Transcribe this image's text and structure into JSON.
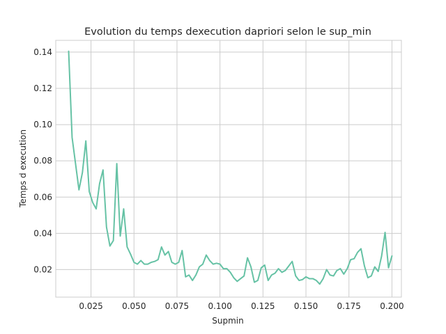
{
  "chart_data": {
    "type": "line",
    "title": "Evolution du temps dexecution dapriori selon le sup_min",
    "xlabel": "Supmin",
    "ylabel": "Temps d execution",
    "xlim": [
      0.0045,
      0.2055
    ],
    "ylim": [
      0.0048,
      0.1465
    ],
    "grid": true,
    "line_color": "#66c2a5",
    "x_ticks": [
      {
        "value": 0.025,
        "label": "0.025"
      },
      {
        "value": 0.05,
        "label": "0.050"
      },
      {
        "value": 0.075,
        "label": "0.075"
      },
      {
        "value": 0.1,
        "label": "0.100"
      },
      {
        "value": 0.125,
        "label": "0.125"
      },
      {
        "value": 0.15,
        "label": "0.150"
      },
      {
        "value": 0.175,
        "label": "0.175"
      },
      {
        "value": 0.2,
        "label": "0.200"
      }
    ],
    "y_ticks": [
      {
        "value": 0.02,
        "label": "0.02"
      },
      {
        "value": 0.04,
        "label": "0.04"
      },
      {
        "value": 0.06,
        "label": "0.06"
      },
      {
        "value": 0.08,
        "label": "0.08"
      },
      {
        "value": 0.1,
        "label": "0.10"
      },
      {
        "value": 0.12,
        "label": "0.12"
      },
      {
        "value": 0.14,
        "label": "0.14"
      }
    ],
    "series": [
      {
        "x": [
          0.012,
          0.014,
          0.016,
          0.018,
          0.02,
          0.022,
          0.024,
          0.026,
          0.028,
          0.03,
          0.032,
          0.034,
          0.036,
          0.038,
          0.04,
          0.042,
          0.044,
          0.046,
          0.048,
          0.05,
          0.052,
          0.054,
          0.056,
          0.058,
          0.06,
          0.062,
          0.064,
          0.066,
          0.068,
          0.07,
          0.072,
          0.074,
          0.076,
          0.078,
          0.08,
          0.082,
          0.084,
          0.086,
          0.088,
          0.09,
          0.092,
          0.094,
          0.096,
          0.098,
          0.1,
          0.102,
          0.104,
          0.106,
          0.108,
          0.11,
          0.112,
          0.114,
          0.116,
          0.118,
          0.12,
          0.122,
          0.124,
          0.126,
          0.128,
          0.13,
          0.132,
          0.134,
          0.136,
          0.138,
          0.14,
          0.142,
          0.144,
          0.146,
          0.148,
          0.15,
          0.152,
          0.154,
          0.156,
          0.158,
          0.16,
          0.162,
          0.164,
          0.166,
          0.168,
          0.17,
          0.172,
          0.174,
          0.176,
          0.178,
          0.18,
          0.182,
          0.184,
          0.186,
          0.188,
          0.19,
          0.192,
          0.194,
          0.196,
          0.198,
          0.2
        ],
        "y": [
          0.1405,
          0.093,
          0.0785,
          0.064,
          0.0735,
          0.091,
          0.063,
          0.057,
          0.0535,
          0.0675,
          0.075,
          0.0435,
          0.033,
          0.036,
          0.0785,
          0.0385,
          0.0535,
          0.0325,
          0.0285,
          0.024,
          0.023,
          0.025,
          0.023,
          0.023,
          0.024,
          0.0245,
          0.0255,
          0.0325,
          0.028,
          0.03,
          0.024,
          0.023,
          0.024,
          0.0305,
          0.016,
          0.017,
          0.014,
          0.017,
          0.0215,
          0.023,
          0.028,
          0.025,
          0.023,
          0.0235,
          0.023,
          0.0205,
          0.0205,
          0.0185,
          0.0155,
          0.0135,
          0.015,
          0.0165,
          0.0265,
          0.0215,
          0.013,
          0.014,
          0.021,
          0.0225,
          0.014,
          0.017,
          0.018,
          0.0205,
          0.0185,
          0.0195,
          0.022,
          0.0245,
          0.0165,
          0.014,
          0.0145,
          0.016,
          0.015,
          0.015,
          0.014,
          0.012,
          0.015,
          0.02,
          0.017,
          0.0165,
          0.0195,
          0.0205,
          0.0175,
          0.0205,
          0.0255,
          0.026,
          0.0295,
          0.0315,
          0.022,
          0.0155,
          0.0165,
          0.0215,
          0.019,
          0.0275,
          0.0405,
          0.021,
          0.0275
        ]
      }
    ]
  }
}
